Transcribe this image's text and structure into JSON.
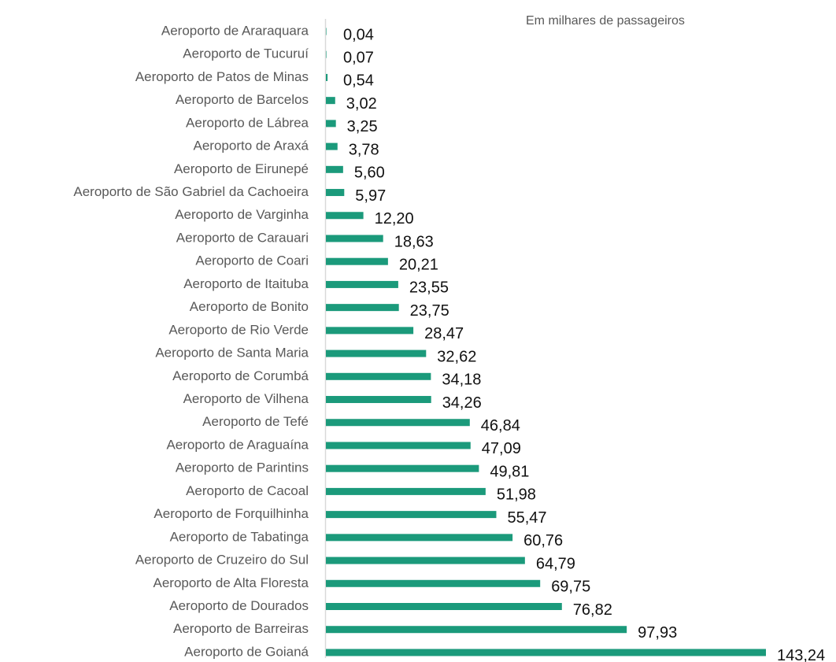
{
  "chart_data": {
    "type": "barh",
    "subtitle": "Em milhares de passageiros",
    "categories": [
      "Aeroporto de Araraquara",
      "Aeroporto de Tucuruí",
      "Aeroporto de Patos de Minas",
      "Aeroporto de Barcelos",
      "Aeroporto de Lábrea",
      "Aeroporto de Araxá",
      "Aeroporto de Eirunepé",
      "Aeroporto de São Gabriel da Cachoeira",
      "Aeroporto de Varginha",
      "Aeroporto de Carauari",
      "Aeroporto de Coari",
      "Aeroporto de Itaituba",
      "Aeroporto de Bonito",
      "Aeroporto de Rio Verde",
      "Aeroporto de Santa Maria",
      "Aeroporto de Corumbá",
      "Aeroporto de Vilhena",
      "Aeroporto de Tefé",
      "Aeroporto de Araguaína",
      "Aeroporto de Parintins",
      "Aeroporto de Cacoal",
      "Aeroporto de Forquilhinha",
      "Aeroporto de Tabatinga",
      "Aeroporto de Cruzeiro do Sul",
      "Aeroporto de Alta Floresta",
      "Aeroporto de Dourados",
      "Aeroporto de Barreiras",
      "Aeroporto de Goianá"
    ],
    "values": [
      0.04,
      0.07,
      0.54,
      3.02,
      3.25,
      3.78,
      5.6,
      5.97,
      12.2,
      18.63,
      20.21,
      23.55,
      23.75,
      28.47,
      32.62,
      34.18,
      34.26,
      46.84,
      47.09,
      49.81,
      51.98,
      55.47,
      60.76,
      64.79,
      69.75,
      76.82,
      97.93,
      143.24
    ],
    "value_labels": [
      "0,04",
      "0,07",
      "0,54",
      "3,02",
      "3,25",
      "3,78",
      "5,60",
      "5,97",
      "12,20",
      "18,63",
      "20,21",
      "23,55",
      "23,75",
      "28,47",
      "32,62",
      "34,18",
      "34,26",
      "46,84",
      "47,09",
      "49,81",
      "51,98",
      "55,47",
      "60,76",
      "64,79",
      "69,75",
      "76,82",
      "97,93",
      "143,24"
    ],
    "color": "#1b9a7b"
  }
}
